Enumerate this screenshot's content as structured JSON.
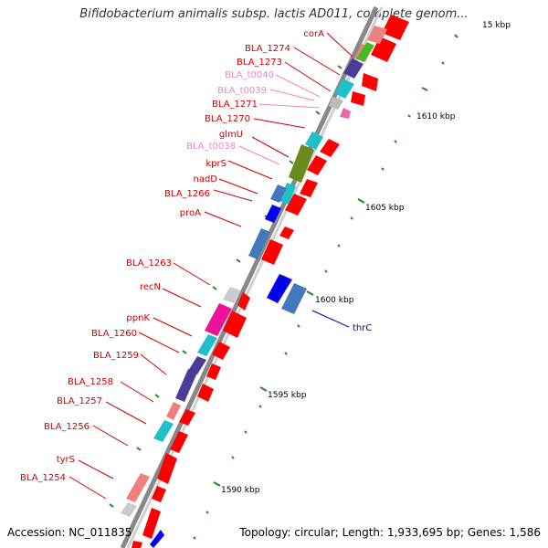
{
  "title": "Bifidobacterium animalis subsp. lactis AD011, complete genom...",
  "footer": {
    "accession": "Accession: NC_011835",
    "summary": "Topology: circular; Length: 1,933,695 bp; Genes: 1,586"
  },
  "ruler": {
    "labels": [
      "15 kbp",
      "1610 kbp",
      "1605 kbp",
      "1600 kbp",
      "1595 kbp",
      "1590 kbp"
    ]
  },
  "genes": [
    {
      "name": "corA",
      "color": "#cc0000"
    },
    {
      "name": "BLA_1274",
      "color": "#cc0000"
    },
    {
      "name": "BLA_1273",
      "color": "#cc0000"
    },
    {
      "name": "BLA_t0040",
      "color": "#ee88bb"
    },
    {
      "name": "BLA_t0039",
      "color": "#ee88bb"
    },
    {
      "name": "BLA_1271",
      "color": "#cc0000"
    },
    {
      "name": "BLA_1270",
      "color": "#cc0000"
    },
    {
      "name": "glmU",
      "color": "#cc0000"
    },
    {
      "name": "BLA_t0038",
      "color": "#ee88bb"
    },
    {
      "name": "kprS",
      "color": "#cc0000"
    },
    {
      "name": "nadD",
      "color": "#cc0000"
    },
    {
      "name": "BLA_1266",
      "color": "#cc0000"
    },
    {
      "name": "proA",
      "color": "#cc0000"
    },
    {
      "name": "BLA_1263",
      "color": "#cc0000"
    },
    {
      "name": "recN",
      "color": "#cc0000"
    },
    {
      "name": "ppnK",
      "color": "#cc0000"
    },
    {
      "name": "BLA_1260",
      "color": "#cc0000"
    },
    {
      "name": "BLA_1259",
      "color": "#cc0000"
    },
    {
      "name": "BLA_1258",
      "color": "#cc0000"
    },
    {
      "name": "BLA_1257",
      "color": "#cc0000"
    },
    {
      "name": "BLA_1256",
      "color": "#cc0000"
    },
    {
      "name": "tyrS",
      "color": "#cc0000"
    },
    {
      "name": "BLA_1254",
      "color": "#cc0000"
    },
    {
      "name": "thrC",
      "color": "#0000aa"
    }
  ],
  "colors": {
    "backbone": "#999999",
    "arrow": "#ff0000",
    "tick": "#228822",
    "label_red": "#cc0000",
    "label_pink": "#ee88bb",
    "label_blue": "#0000aa"
  }
}
